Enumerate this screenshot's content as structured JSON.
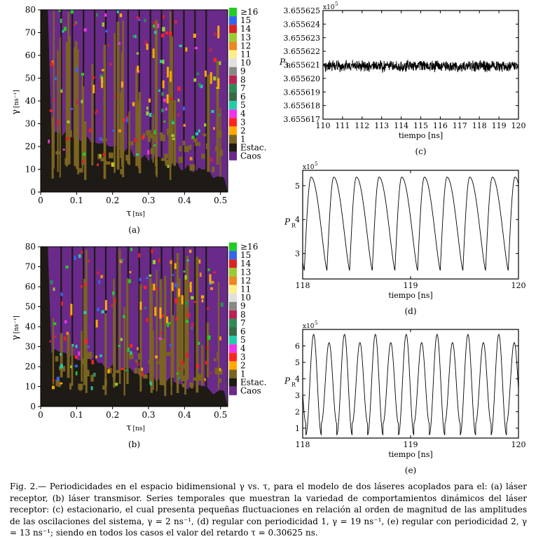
{
  "caption": {
    "label": "Fig. 2.—",
    "text": " Periodicidades en el espacio bidimensional γ vs. τ, para el modelo de dos láseres acoplados para el: (a) láser receptor, (b) láser transmisor. Series temporales que muestran la variedad de comportamientos dinámicos del láser receptor: (c) estacionario, el cual presenta pequeñas fluctuaciones en relación al orden de magnitud de las amplitudes de las oscilaciones del sistema, γ = 2 ns⁻¹, (d) regular con periodicidad 1, γ = 19 ns⁻¹, (e) regular con periodicidad 2, γ = 13 ns⁻¹; siendo en todos los casos el valor del retardo τ = 0.30625 ns."
  },
  "legend": {
    "items": [
      {
        "label": "≥16",
        "color": "#22cc22"
      },
      {
        "label": "15",
        "color": "#3366ee"
      },
      {
        "label": "14",
        "color": "#dd2222"
      },
      {
        "label": "13",
        "color": "#99cc33"
      },
      {
        "label": "12",
        "color": "#ee8822"
      },
      {
        "label": "11",
        "color": "#ffee88"
      },
      {
        "label": "10",
        "color": "#e0e0e0"
      },
      {
        "label": "9",
        "color": "#888888"
      },
      {
        "label": "8",
        "color": "#bb2255"
      },
      {
        "label": "7",
        "color": "#2e8b57"
      },
      {
        "label": "6",
        "color": "#3a6a4a"
      },
      {
        "label": "5",
        "color": "#22ccaa"
      },
      {
        "label": "4",
        "color": "#ee33ee"
      },
      {
        "label": "3",
        "color": "#ff2222"
      },
      {
        "label": "2",
        "color": "#ffaa00"
      },
      {
        "label": "1",
        "color": "#7a6420"
      },
      {
        "label": "Estac.",
        "color": "#1e1a16"
      },
      {
        "label": "Caos",
        "color": "#6a2a8a"
      }
    ]
  },
  "chart_data": [
    {
      "id": "a",
      "type": "heatmap",
      "panel_label": "(a)",
      "xlabel": "τ",
      "xunit": "[ns]",
      "ylabel": "γ",
      "yunit": "[ns⁻¹]",
      "xlim": [
        0,
        0.52
      ],
      "ylim": [
        0,
        80
      ],
      "xticks": [
        0,
        0.1,
        0.2,
        0.3,
        0.4,
        0.5
      ],
      "xticklabels": [
        "0",
        "0.1",
        "0.2",
        "0.3",
        "0.4",
        "0.5"
      ],
      "yticks": [
        0,
        10,
        20,
        30,
        40,
        50,
        60,
        70,
        80
      ],
      "yticklabels": [
        "0",
        "10",
        "20",
        "30",
        "40",
        "50",
        "60",
        "70",
        "80"
      ]
    },
    {
      "id": "b",
      "type": "heatmap",
      "panel_label": "(b)",
      "xlabel": "τ",
      "xunit": "[ns]",
      "ylabel": "γ",
      "yunit": "[ns⁻¹]",
      "xlim": [
        0,
        0.52
      ],
      "ylim": [
        0,
        80
      ],
      "xticks": [
        0,
        0.1,
        0.2,
        0.3,
        0.4,
        0.5
      ],
      "xticklabels": [
        "0",
        "0.1",
        "0.2",
        "0.3",
        "0.4",
        "0.5"
      ],
      "yticks": [
        0,
        10,
        20,
        30,
        40,
        50,
        60,
        70,
        80
      ],
      "yticklabels": [
        "0",
        "10",
        "20",
        "30",
        "40",
        "50",
        "60",
        "70",
        "80"
      ]
    },
    {
      "id": "c",
      "type": "line",
      "panel_label": "(c)",
      "xlabel": "tiempo [ns]",
      "ylabel": "P",
      "ylabel_sub": "R",
      "scale_label": "x10",
      "scale_exp": "5",
      "xlim": [
        110,
        120
      ],
      "ylim": [
        3.655617,
        3.655625
      ],
      "xticks": [
        110,
        111,
        112,
        113,
        114,
        115,
        116,
        117,
        118,
        119,
        120
      ],
      "xticklabels": [
        "110",
        "111",
        "112",
        "113",
        "114",
        "115",
        "116",
        "117",
        "118",
        "119",
        "120"
      ],
      "yticks": [
        3.655617,
        3.655618,
        3.655619,
        3.65562,
        3.655621,
        3.655622,
        3.655623,
        3.655624,
        3.655625
      ],
      "yticklabels": [
        "3.655617",
        "3.655618",
        "3.655619",
        "3.655620",
        "3.655621",
        "3.655622",
        "3.655623",
        "3.655624",
        "3.655625"
      ],
      "series": [
        {
          "name": "P_R",
          "mean": 3.6556209,
          "amplitude": 4e-07,
          "description": "noisy stationary signal"
        }
      ]
    },
    {
      "id": "d",
      "type": "line",
      "panel_label": "(d)",
      "xlabel": "tiempo [ns]",
      "ylabel": "P",
      "ylabel_sub": "R",
      "scale_label": "x10",
      "scale_exp": "5",
      "xlim": [
        118,
        120
      ],
      "ylim": [
        2.25,
        5.45
      ],
      "xticks": [
        118,
        119,
        120
      ],
      "xticklabels": [
        "118",
        "119",
        "120"
      ],
      "yticks": [
        3,
        4,
        5
      ],
      "yticklabels": [
        "3",
        "4",
        "5"
      ],
      "series": [
        {
          "name": "P_R",
          "min": 2.5,
          "max": 5.25,
          "period_ns": 0.21,
          "description": "period-1 oscillation"
        }
      ]
    },
    {
      "id": "e",
      "type": "line",
      "panel_label": "(e)",
      "xlabel": "tiempo [ns]",
      "ylabel": "P",
      "ylabel_sub": "R",
      "scale_label": "x10",
      "scale_exp": "5",
      "xlim": [
        118,
        120
      ],
      "ylim": [
        0.4,
        7.0
      ],
      "xticks": [
        118,
        119,
        120
      ],
      "xticklabels": [
        "118",
        "119",
        "120"
      ],
      "yticks": [
        1,
        2,
        3,
        4,
        5,
        6
      ],
      "yticklabels": [
        "1",
        "2",
        "3",
        "4",
        "5",
        "6"
      ],
      "series": [
        {
          "name": "P_R",
          "peaks": [
            6.7,
            6.2
          ],
          "troughs": [
            0.6,
            1.3
          ],
          "period_ns": 0.143,
          "description": "period-2 oscillation"
        }
      ]
    }
  ]
}
